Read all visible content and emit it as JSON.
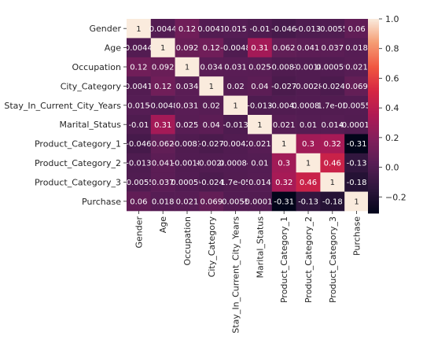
{
  "chart_data": {
    "type": "heatmap",
    "labels": [
      "Gender",
      "Age",
      "Occupation",
      "City_Category",
      "Stay_In_Current_City_Years",
      "Marital_Status",
      "Product_Category_1",
      "Product_Category_2",
      "Product_Category_3",
      "Purchase"
    ],
    "values": [
      [
        1,
        0.0044,
        0.12,
        0.0041,
        0.015,
        -0.01,
        -0.046,
        -0.013,
        -0.0055,
        0.06
      ],
      [
        0.0044,
        1,
        0.092,
        0.12,
        -0.0048,
        0.31,
        0.062,
        0.041,
        0.037,
        0.018
      ],
      [
        0.12,
        0.092,
        1,
        0.034,
        0.031,
        0.025,
        -0.0081,
        -0.0018,
        0.00059,
        0.021
      ],
      [
        0.0041,
        0.12,
        0.034,
        1,
        0.02,
        0.04,
        -0.027,
        -0.0028,
        -0.024,
        0.069
      ],
      [
        0.015,
        -0.0048,
        0.031,
        0.02,
        1,
        -0.013,
        -0.0042,
        0.00084,
        1.7e-05,
        0.0055
      ],
      [
        -0.01,
        0.31,
        0.025,
        0.04,
        -0.013,
        1,
        0.021,
        0.01,
        0.014,
        -0.00013
      ],
      [
        -0.046,
        0.062,
        -0.0081,
        -0.027,
        -0.0042,
        0.021,
        1,
        0.3,
        0.32,
        -0.31
      ],
      [
        -0.013,
        0.041,
        -0.0018,
        -0.0028,
        0.00084,
        0.01,
        0.3,
        1,
        0.46,
        -0.13
      ],
      [
        -0.0055,
        0.037,
        0.00059,
        -0.024,
        1.7e-05,
        0.014,
        0.32,
        0.46,
        1,
        -0.18
      ],
      [
        0.06,
        0.018,
        0.021,
        0.069,
        0.0055,
        -0.00013,
        -0.31,
        -0.13,
        -0.18,
        1
      ]
    ],
    "cell_text": [
      [
        "1",
        "0.0044",
        "0.12",
        "0.0041",
        "0.015",
        "-0.01",
        "-0.046",
        "-0.013",
        "-0.0055",
        "0.06"
      ],
      [
        "0.0044",
        "1",
        "0.092",
        "0.12",
        "-0.0048",
        "0.31",
        "0.062",
        "0.041",
        "0.037",
        "0.018"
      ],
      [
        "0.12",
        "0.092",
        "1",
        "0.034",
        "0.031",
        "0.025",
        "-0.0081",
        "-0.0018",
        "0.00059",
        "0.021"
      ],
      [
        "0.0041",
        "0.12",
        "0.034",
        "1",
        "0.02",
        "0.04",
        "-0.027",
        "-0.0028",
        "-0.024",
        "0.069"
      ],
      [
        "0.015",
        "-0.0048",
        "0.031",
        "0.02",
        "1",
        "-0.013",
        "-0.0042",
        "0.00084",
        "1.7e-05",
        "0.0055"
      ],
      [
        "-0.01",
        "0.31",
        "0.025",
        "0.04",
        "-0.013",
        "1",
        "0.021",
        "0.01",
        "0.014",
        "-0.00013"
      ],
      [
        "-0.046",
        "0.062",
        "-0.0081",
        "-0.027",
        "-0.0042",
        "0.021",
        "1",
        "0.3",
        "0.32",
        "-0.31"
      ],
      [
        "-0.013",
        "0.041",
        "-0.0018",
        "-0.0028",
        "0.00084",
        "0.01",
        "0.3",
        "1",
        "0.46",
        "-0.13"
      ],
      [
        "-0.0055",
        "0.037",
        "0.00059",
        "-0.024",
        "1.7e-05",
        "0.014",
        "0.32",
        "0.46",
        "1",
        "-0.18"
      ],
      [
        "0.06",
        "0.018",
        "0.021",
        "0.069",
        "0.0055",
        "-0.00013",
        "-0.31",
        "-0.13",
        "-0.18",
        "1"
      ]
    ],
    "colorbar": {
      "min": -0.31,
      "max": 1,
      "ticks": [
        -0.2,
        0,
        0.2,
        0.4,
        0.6,
        0.8,
        1
      ],
      "tick_labels": [
        "−0.2",
        "0.0",
        "0.2",
        "0.4",
        "0.6",
        "0.8",
        "1.0"
      ],
      "colormap": "rocket"
    },
    "title": "",
    "xlabel": "",
    "ylabel": ""
  }
}
